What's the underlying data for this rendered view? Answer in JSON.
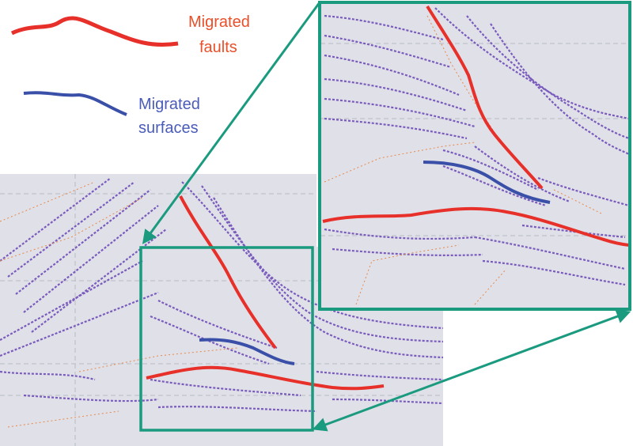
{
  "legend": {
    "items": [
      {
        "lines": [
          "Migrated",
          "faults"
        ]
      },
      {
        "lines": [
          "Migrated",
          "surfaces"
        ]
      }
    ]
  }
}
